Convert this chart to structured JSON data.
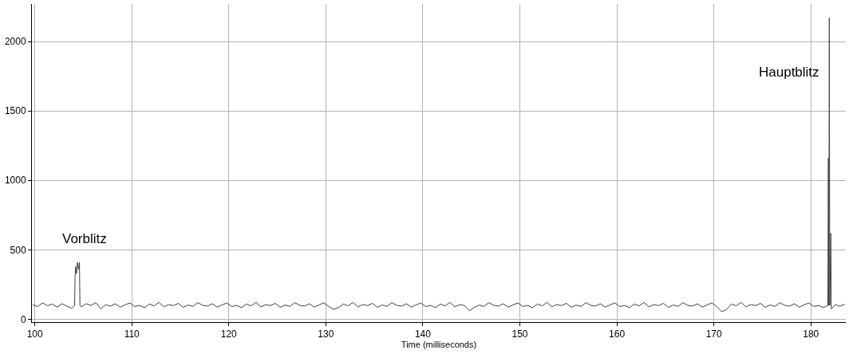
{
  "chart_data": {
    "type": "line",
    "xlabel": "Time (milliseconds)",
    "xlim": [
      99.7,
      183.6
    ],
    "xticks": [
      100,
      110,
      120,
      130,
      140,
      150,
      160,
      170,
      180
    ],
    "ylim": [
      -20,
      2270
    ],
    "yticks": [
      0,
      500,
      1000,
      1500,
      2000
    ],
    "grid": true,
    "marker": "none",
    "line_style": "solid",
    "annotations": [
      "Vorblitz",
      "Hauptblitz"
    ],
    "series": [
      {
        "color": "#404040",
        "x": [
          99.8,
          100.3,
          100.8,
          101.3,
          101.8,
          102.3,
          102.8,
          103.3,
          103.8,
          104.1,
          104.15,
          104.2,
          104.3,
          104.4,
          104.5,
          104.6,
          104.65,
          104.8,
          105.3,
          105.8,
          106.3,
          106.8,
          107.3,
          107.8,
          108.3,
          108.8,
          109.3,
          109.8,
          110.3,
          110.8,
          111.3,
          111.8,
          112.3,
          112.8,
          113.3,
          113.8,
          114.3,
          114.8,
          115.3,
          115.8,
          116.3,
          116.8,
          117.3,
          117.8,
          118.3,
          118.8,
          119.3,
          119.8,
          120.3,
          120.8,
          121.3,
          121.8,
          122.3,
          122.8,
          123.3,
          123.8,
          124.3,
          124.8,
          125.3,
          125.8,
          126.3,
          126.8,
          127.3,
          127.8,
          128.3,
          128.8,
          129.3,
          129.8,
          130.3,
          130.8,
          131.3,
          131.8,
          132.3,
          132.8,
          133.3,
          133.8,
          134.3,
          134.8,
          135.3,
          135.8,
          136.3,
          136.8,
          137.3,
          137.8,
          138.3,
          138.8,
          139.3,
          139.8,
          140.3,
          140.8,
          141.3,
          141.8,
          142.3,
          142.8,
          143.3,
          143.8,
          144.3,
          144.8,
          145.3,
          145.8,
          146.3,
          146.8,
          147.3,
          147.8,
          148.3,
          148.8,
          149.3,
          149.8,
          150.3,
          150.8,
          151.3,
          151.8,
          152.3,
          152.8,
          153.3,
          153.8,
          154.3,
          154.8,
          155.3,
          155.8,
          156.3,
          156.8,
          157.3,
          157.8,
          158.3,
          158.8,
          159.3,
          159.8,
          160.3,
          160.8,
          161.3,
          161.8,
          162.3,
          162.8,
          163.3,
          163.8,
          164.3,
          164.8,
          165.3,
          165.8,
          166.3,
          166.8,
          167.3,
          167.8,
          168.3,
          168.8,
          169.3,
          169.8,
          170.3,
          170.8,
          171.3,
          171.8,
          172.3,
          172.8,
          173.3,
          173.8,
          174.3,
          174.8,
          175.3,
          175.8,
          176.3,
          176.8,
          177.3,
          177.8,
          178.3,
          178.8,
          179.3,
          179.8,
          180.3,
          180.8,
          181.3,
          181.6,
          181.75,
          181.8,
          181.85,
          181.9,
          181.95,
          182.05,
          182.1,
          182.5,
          183.0,
          183.5
        ],
        "values": [
          105,
          92,
          118,
          98,
          110,
          88,
          112,
          95,
          80,
          100,
          300,
          380,
          330,
          410,
          360,
          410,
          100,
          90,
          112,
          100,
          120,
          75,
          105,
          95,
          112,
          88,
          104,
          118,
          92,
          100,
          84,
          110,
          97,
          122,
          90,
          106,
          99,
          115,
          86,
          103,
          93,
          120,
          101,
          95,
          112,
          88,
          104,
          118,
          92,
          100,
          84,
          110,
          97,
          122,
          90,
          106,
          99,
          115,
          86,
          103,
          93,
          120,
          101,
          95,
          112,
          88,
          104,
          118,
          92,
          72,
          84,
          110,
          97,
          122,
          90,
          106,
          99,
          115,
          86,
          103,
          93,
          120,
          101,
          95,
          112,
          88,
          104,
          118,
          92,
          100,
          84,
          110,
          97,
          122,
          90,
          106,
          99,
          62,
          86,
          103,
          93,
          120,
          101,
          95,
          112,
          88,
          104,
          118,
          92,
          100,
          84,
          110,
          97,
          122,
          90,
          106,
          99,
          115,
          86,
          103,
          93,
          120,
          101,
          95,
          112,
          88,
          104,
          118,
          92,
          100,
          84,
          110,
          97,
          122,
          90,
          106,
          99,
          115,
          86,
          103,
          93,
          120,
          101,
          95,
          112,
          88,
          104,
          118,
          92,
          55,
          70,
          110,
          97,
          122,
          90,
          106,
          99,
          115,
          86,
          103,
          93,
          120,
          101,
          95,
          112,
          88,
          104,
          118,
          92,
          100,
          84,
          95,
          100,
          1160,
          100,
          2170,
          100,
          620,
          75,
          105,
          95,
          108
        ]
      }
    ]
  }
}
